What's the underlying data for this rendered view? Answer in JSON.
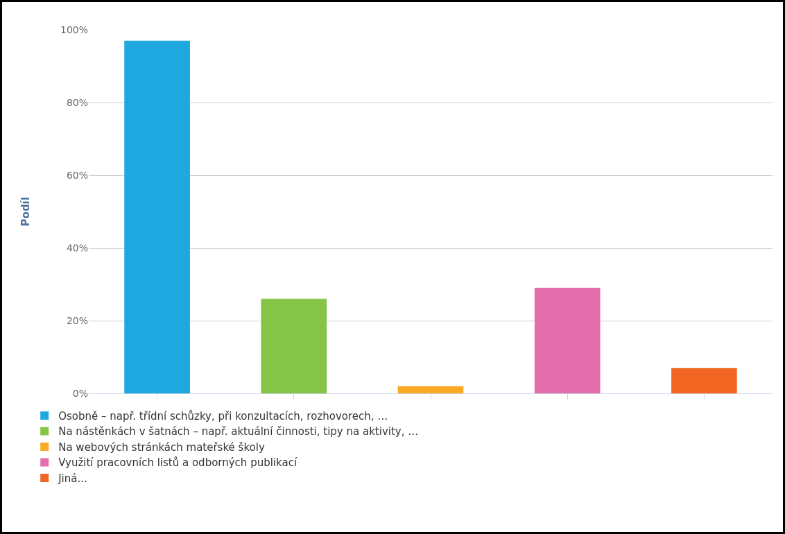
{
  "chart_data": {
    "type": "bar",
    "ylabel": "Podíl",
    "categories": [
      null,
      null,
      null,
      null,
      null
    ],
    "series": [
      {
        "name": "Osobně – např. třídní schůzky, při konzultacích, rozhovorech, …",
        "color": "#1fa8e0",
        "values": [
          97,
          null,
          null,
          null,
          null
        ]
      },
      {
        "name": "Na nástěnkách v šatnách – např. aktuální činnosti, tipy na aktivity, …",
        "color": "#86c447",
        "values": [
          null,
          26,
          null,
          null,
          null
        ]
      },
      {
        "name": "Na webových stránkách mateřské školy",
        "color": "#fbaa26",
        "values": [
          null,
          null,
          2,
          null,
          null
        ]
      },
      {
        "name": "Využití pracovních listů a odborných publikací",
        "color": "#e56fac",
        "values": [
          null,
          null,
          null,
          29,
          null
        ]
      },
      {
        "name": "Jiná...",
        "color": "#f26522",
        "values": [
          null,
          null,
          null,
          null,
          7
        ]
      }
    ],
    "ylim": [
      0,
      100
    ],
    "yticks": [
      {
        "value": 0,
        "label": "0%"
      },
      {
        "value": 20,
        "label": "20%"
      },
      {
        "value": 40,
        "label": "40%"
      },
      {
        "value": 60,
        "label": "60%"
      },
      {
        "value": 80,
        "label": "80%"
      },
      {
        "value": 100,
        "label": "100%"
      }
    ],
    "grid": "y",
    "legend": "bottom"
  }
}
